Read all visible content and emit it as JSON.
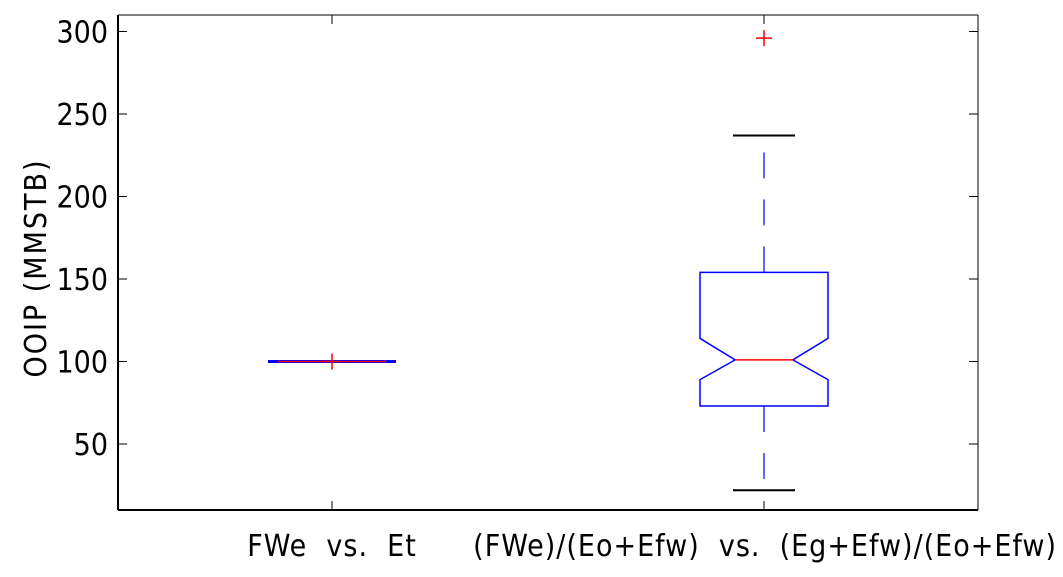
{
  "chart_data": {
    "type": "boxplot",
    "title": "",
    "xlabel": "",
    "ylabel": "OOIP   (MMSTB)",
    "ylim": [
      10,
      310
    ],
    "yticks": [
      50,
      100,
      150,
      200,
      250,
      300
    ],
    "grid": false,
    "notched": true,
    "categories": [
      "FWe  vs.  Et",
      "(FWe)/(Eo+Efw)  vs.  (Eg+Efw)/(Eo+Efw)"
    ],
    "boxes": [
      {
        "category": "FWe  vs.  Et",
        "q1": 100,
        "median": 100,
        "q3": 100,
        "notch_low": 100,
        "notch_high": 100,
        "whisker_low": 100,
        "whisker_high": 100,
        "outliers": [
          100
        ]
      },
      {
        "category": "(FWe)/(Eo+Efw)  vs.  (Eg+Efw)/(Eo+Efw)",
        "q1": 73,
        "median": 101,
        "q3": 154,
        "notch_low": 89,
        "notch_high": 114,
        "whisker_low": 22,
        "whisker_high": 237,
        "outliers": [
          296
        ]
      }
    ],
    "colors": {
      "box": "#0000ff",
      "median": "#ff0000",
      "outlier": "#ff0000",
      "whisker": "#0000ff",
      "cap": "#000000",
      "axes": "#000000"
    }
  }
}
